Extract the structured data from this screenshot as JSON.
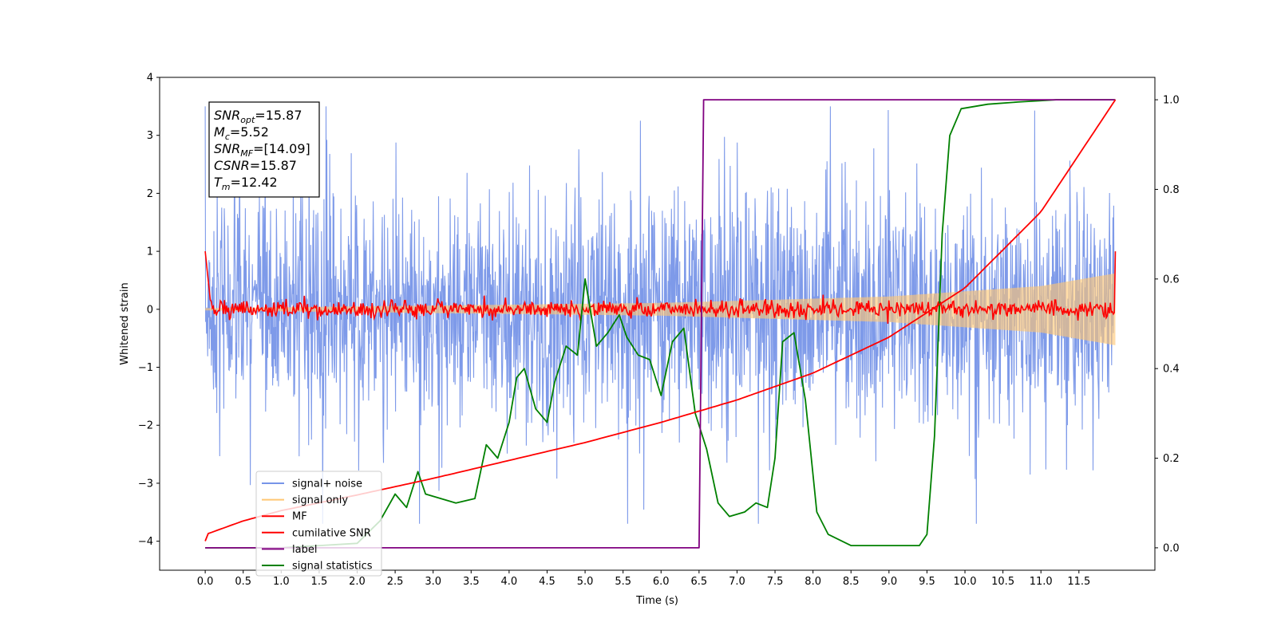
{
  "chart_data": {
    "type": "line",
    "xlabel": "Time (s)",
    "ylabel_left": "Whitened strain",
    "ylabel_right": "",
    "xlim": [
      -0.6,
      12.5
    ],
    "ylim_left": [
      -4.5,
      4.0
    ],
    "ylim_right": [
      -0.05,
      1.05
    ],
    "x_ticks": [
      0.0,
      0.5,
      1.0,
      1.5,
      2.0,
      2.5,
      3.0,
      3.5,
      4.0,
      4.5,
      5.0,
      5.5,
      6.0,
      6.5,
      7.0,
      7.5,
      8.0,
      8.5,
      9.0,
      9.5,
      10.0,
      10.5,
      11.0,
      11.5
    ],
    "x_tick_labels": [
      "0.0",
      "0.5",
      "1.0",
      "1.5",
      "2.0",
      "2.5",
      "3.0",
      "3.5",
      "4.0",
      "4.5",
      "5.0",
      "5.5",
      "6.0",
      "6.5",
      "7.0",
      "7.5",
      "8.0",
      "8.5",
      "9.0",
      "9.5",
      "10.0",
      "10.5",
      "11.0",
      "11.5"
    ],
    "y_left_ticks": [
      4,
      3,
      2,
      1,
      0,
      -1,
      -2,
      -3,
      -4
    ],
    "y_left_tick_labels": [
      "4",
      "3",
      "2",
      "1",
      "0",
      "−1",
      "−2",
      "−3",
      "−4"
    ],
    "y_right_ticks": [
      1.0,
      0.8,
      0.6,
      0.4,
      0.2,
      0.0
    ],
    "y_right_tick_labels": [
      "1.0",
      "0.8",
      "0.6",
      "0.4",
      "0.2",
      "0.0"
    ],
    "grid": false,
    "legend_position": "lower-left",
    "t_start": 0.0,
    "t_end": 11.98,
    "series": [
      {
        "name": "signal+ noise",
        "color": "#7795e8",
        "axis": "left",
        "kind": "noise",
        "amplitude_1sigma": 1.0,
        "peak_range": [
          -3.7,
          3.5
        ]
      },
      {
        "name": "signal only",
        "color": "#ffc773",
        "axis": "left",
        "kind": "chirp",
        "envelope": [
          [
            0.0,
            0.02
          ],
          [
            6.0,
            0.11
          ],
          [
            9.0,
            0.22
          ],
          [
            11.0,
            0.4
          ],
          [
            11.98,
            0.62
          ]
        ]
      },
      {
        "name": "MF",
        "color": "#ff0000",
        "axis": "left",
        "kind": "matched-filter",
        "level": 0.0,
        "noise": 0.07,
        "endpoints": [
          1.0,
          1.0
        ]
      },
      {
        "name": "cumilative SNR",
        "color": "#ff0000",
        "axis": "right",
        "kind": "curve",
        "points": [
          [
            0.0,
            0.015
          ],
          [
            0.01,
            0.03
          ],
          [
            0.5,
            0.06
          ],
          [
            1.0,
            0.083
          ],
          [
            2.0,
            0.118
          ],
          [
            3.0,
            0.155
          ],
          [
            4.0,
            0.195
          ],
          [
            5.0,
            0.235
          ],
          [
            6.0,
            0.28
          ],
          [
            7.0,
            0.33
          ],
          [
            8.0,
            0.39
          ],
          [
            9.0,
            0.47
          ],
          [
            10.0,
            0.58
          ],
          [
            11.0,
            0.75
          ],
          [
            11.98,
            1.0
          ]
        ]
      },
      {
        "name": "label",
        "color": "#800080",
        "axis": "right",
        "kind": "step",
        "points": [
          [
            0.0,
            0.0
          ],
          [
            6.5,
            0.0
          ],
          [
            6.56,
            1.0
          ],
          [
            11.98,
            1.0
          ]
        ]
      },
      {
        "name": "signal statistics",
        "color": "#008000",
        "axis": "right",
        "kind": "curve",
        "points": [
          [
            0.0,
            0.0
          ],
          [
            1.0,
            0.0
          ],
          [
            1.5,
            0.005
          ],
          [
            2.0,
            0.01
          ],
          [
            2.3,
            0.06
          ],
          [
            2.5,
            0.12
          ],
          [
            2.65,
            0.09
          ],
          [
            2.8,
            0.17
          ],
          [
            2.9,
            0.12
          ],
          [
            3.1,
            0.11
          ],
          [
            3.3,
            0.1
          ],
          [
            3.55,
            0.11
          ],
          [
            3.7,
            0.23
          ],
          [
            3.85,
            0.2
          ],
          [
            4.0,
            0.28
          ],
          [
            4.1,
            0.38
          ],
          [
            4.2,
            0.4
          ],
          [
            4.35,
            0.31
          ],
          [
            4.5,
            0.28
          ],
          [
            4.6,
            0.37
          ],
          [
            4.75,
            0.45
          ],
          [
            4.9,
            0.43
          ],
          [
            5.0,
            0.6
          ],
          [
            5.15,
            0.45
          ],
          [
            5.3,
            0.48
          ],
          [
            5.45,
            0.52
          ],
          [
            5.55,
            0.47
          ],
          [
            5.7,
            0.43
          ],
          [
            5.85,
            0.42
          ],
          [
            6.0,
            0.34
          ],
          [
            6.15,
            0.46
          ],
          [
            6.3,
            0.49
          ],
          [
            6.45,
            0.3
          ],
          [
            6.6,
            0.22
          ],
          [
            6.75,
            0.1
          ],
          [
            6.9,
            0.07
          ],
          [
            7.1,
            0.08
          ],
          [
            7.25,
            0.1
          ],
          [
            7.4,
            0.09
          ],
          [
            7.5,
            0.2
          ],
          [
            7.6,
            0.46
          ],
          [
            7.75,
            0.48
          ],
          [
            7.9,
            0.33
          ],
          [
            8.05,
            0.08
          ],
          [
            8.2,
            0.03
          ],
          [
            8.5,
            0.005
          ],
          [
            9.0,
            0.005
          ],
          [
            9.4,
            0.005
          ],
          [
            9.5,
            0.03
          ],
          [
            9.6,
            0.25
          ],
          [
            9.7,
            0.7
          ],
          [
            9.8,
            0.92
          ],
          [
            9.95,
            0.98
          ],
          [
            10.3,
            0.99
          ],
          [
            10.7,
            0.995
          ],
          [
            11.2,
            1.0
          ],
          [
            11.98,
            1.0
          ]
        ]
      }
    ],
    "annotation": {
      "lines": [
        {
          "sym": "SNR",
          "sub": "opt",
          "value": "=15.87"
        },
        {
          "sym": "M",
          "sub": "c",
          "value": "=5.52"
        },
        {
          "sym": "SNR",
          "sub": "MF",
          "value": "=[14.09]"
        },
        {
          "sym": "CSNR",
          "sub": "",
          "value": "=15.87"
        },
        {
          "sym": "T",
          "sub": "m",
          "value": "=12.42"
        }
      ]
    }
  }
}
